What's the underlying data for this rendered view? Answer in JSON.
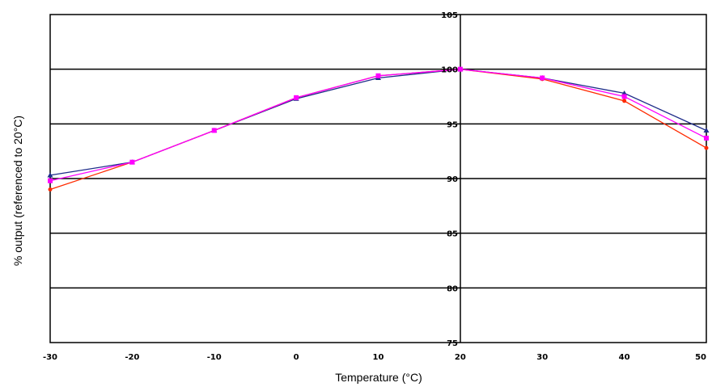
{
  "chart_data": {
    "type": "line",
    "title": "",
    "xlabel": "Temperature (°C)",
    "ylabel": "% output (referenced to 20°C)",
    "xlim": [
      -30,
      50
    ],
    "ylim": [
      75,
      105
    ],
    "x_ticks": [
      -30,
      -20,
      -10,
      0,
      10,
      20,
      30,
      40,
      50
    ],
    "x_tick_labels": [
      "-30",
      "-20",
      "-10",
      "0",
      "10",
      "20",
      "30",
      "40",
      "50"
    ],
    "y_ticks": [
      75,
      80,
      85,
      90,
      95,
      100,
      105
    ],
    "y_tick_labels": [
      "75",
      "80",
      "85",
      "90",
      "95",
      "100",
      "105"
    ],
    "grid": "horizontal",
    "legend": "none",
    "series": [
      {
        "color": "#1f2d8a",
        "marker": "triangle",
        "x": [
          -30,
          -20,
          -10,
          0,
          10,
          20,
          30,
          40,
          50
        ],
        "y": [
          90.3,
          91.5,
          94.4,
          97.3,
          99.2,
          100,
          99.2,
          97.8,
          94.4
        ]
      },
      {
        "color": "#ff2a00",
        "marker": "circle",
        "x": [
          -30,
          -20,
          -10,
          0,
          10,
          20,
          30,
          40,
          50
        ],
        "y": [
          89.0,
          91.5,
          94.4,
          97.4,
          99.4,
          100,
          99.1,
          97.1,
          92.8
        ]
      },
      {
        "color": "#ff00ff",
        "marker": "square",
        "x": [
          -30,
          -20,
          -10,
          0,
          10,
          20,
          30,
          40,
          50
        ],
        "y": [
          89.8,
          91.5,
          94.4,
          97.4,
          99.4,
          100,
          99.2,
          97.5,
          93.7
        ]
      }
    ]
  }
}
